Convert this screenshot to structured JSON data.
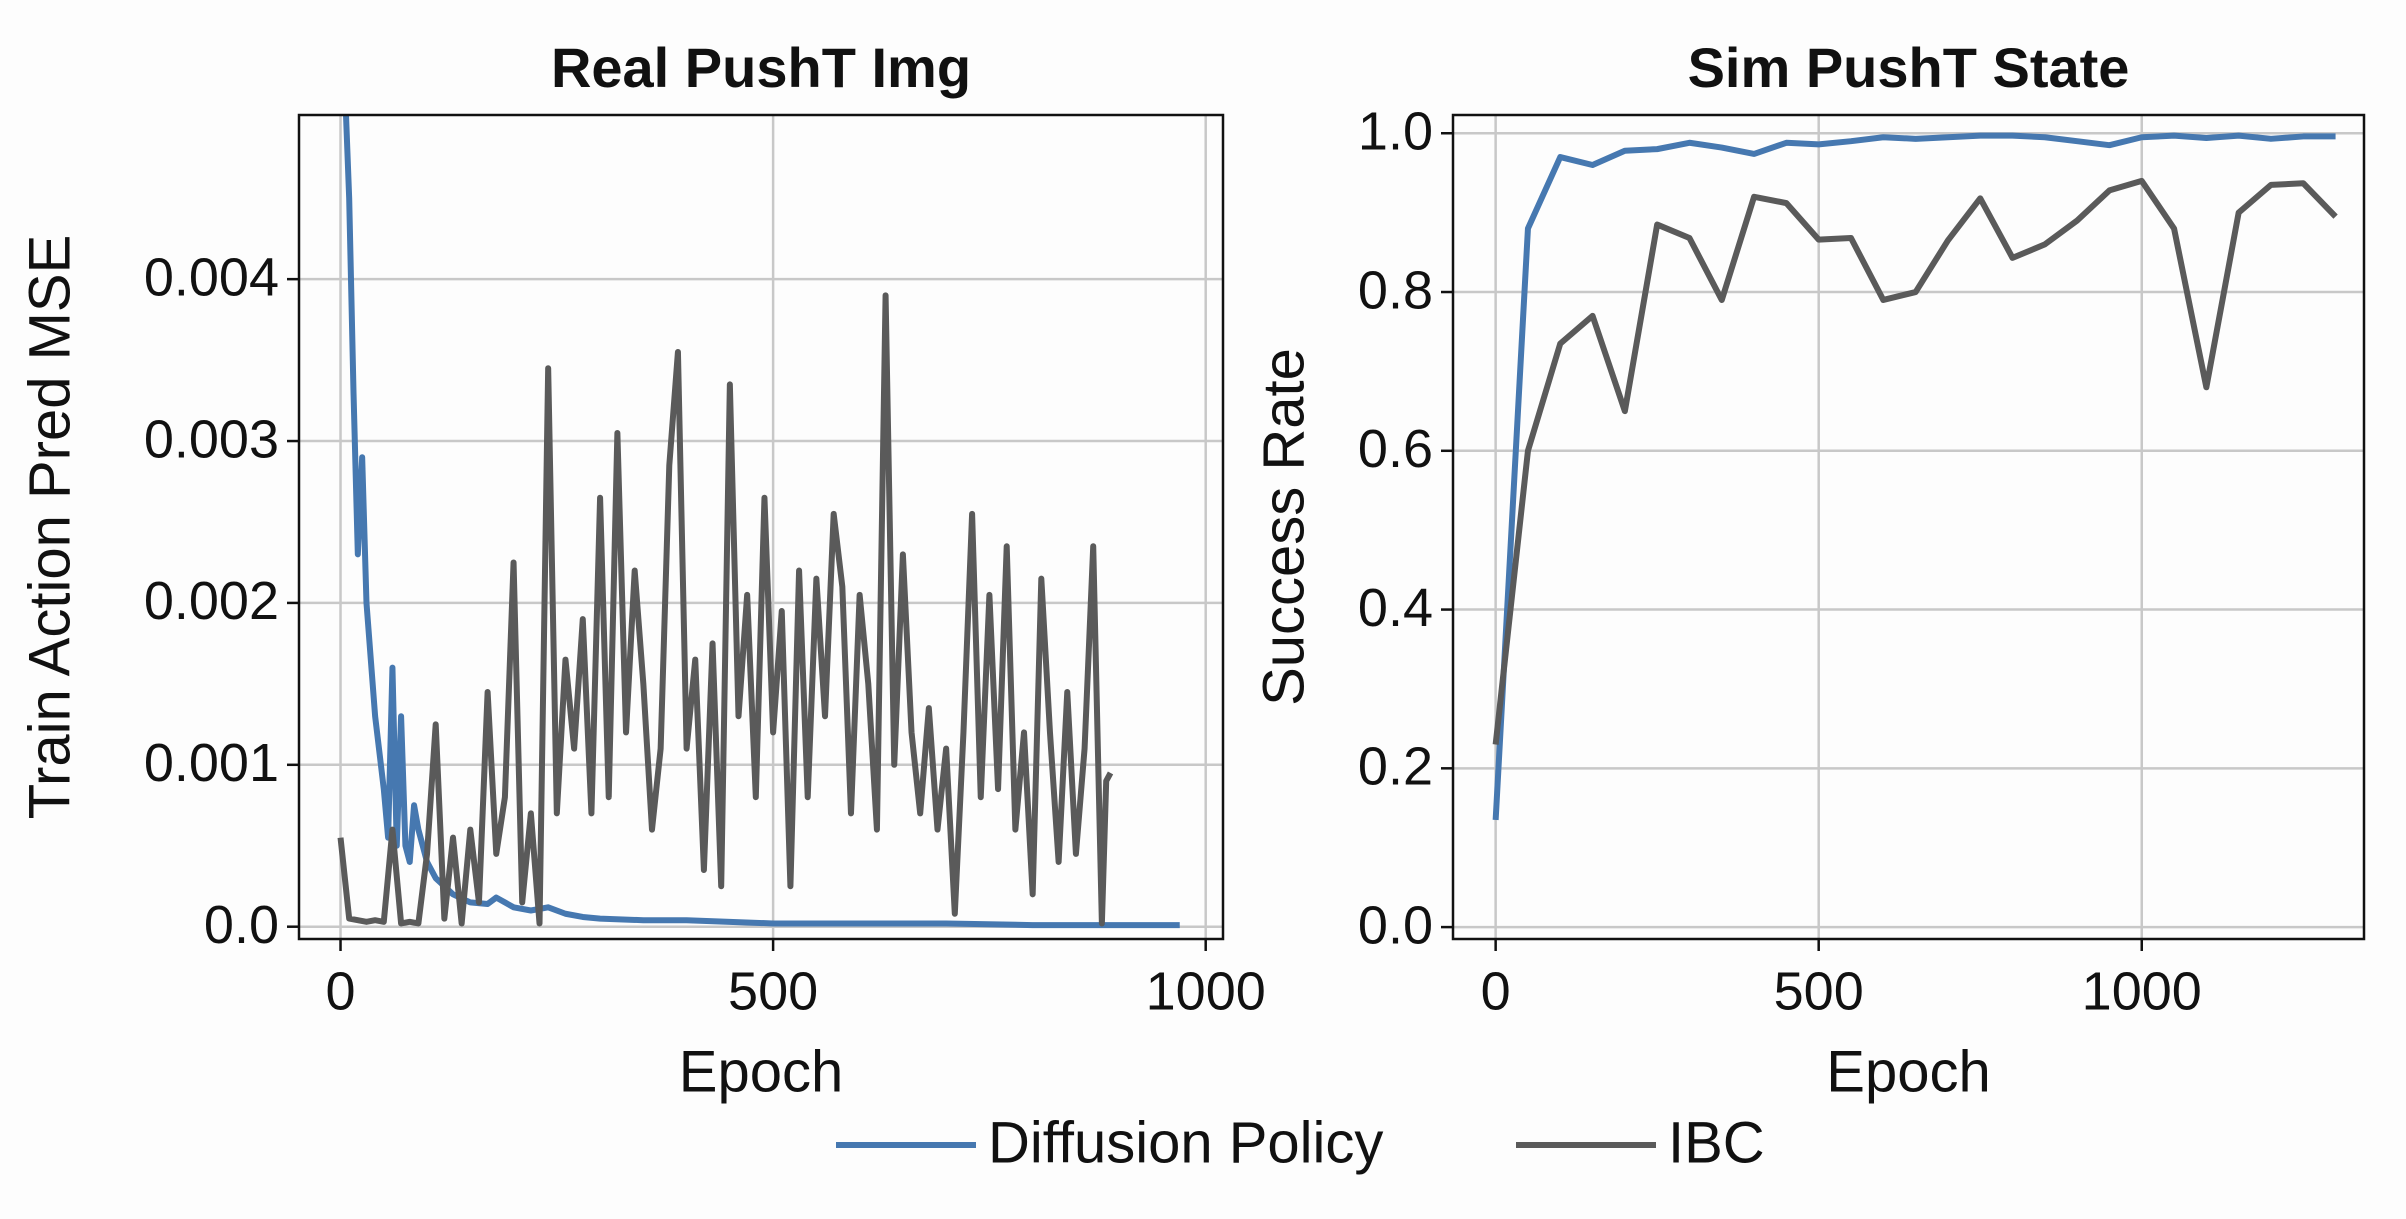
{
  "chart_data": [
    {
      "type": "line",
      "title": "Real PushT Img",
      "xlabel": "Epoch",
      "ylabel": "Train Action Pred MSE",
      "xlim": [
        -48,
        1020
      ],
      "ylim": [
        -7.6e-05,
        0.005014
      ],
      "xticks": [
        0,
        500,
        1000
      ],
      "yticks": [
        {
          "value": 0,
          "label": "0.0"
        },
        0.001,
        0.002,
        0.003,
        0.004
      ],
      "grid": true,
      "series": [
        {
          "name": "Diffusion Policy",
          "color": "#4678b0",
          "x": [
            5,
            10,
            15,
            20,
            25,
            30,
            40,
            50,
            55,
            60,
            65,
            70,
            75,
            80,
            85,
            90,
            100,
            110,
            120,
            130,
            150,
            170,
            180,
            190,
            200,
            220,
            240,
            260,
            280,
            300,
            350,
            400,
            450,
            500,
            600,
            700,
            800,
            900,
            970
          ],
          "values": [
            0.0052,
            0.0045,
            0.0033,
            0.0023,
            0.0029,
            0.002,
            0.0013,
            0.00085,
            0.00055,
            0.0016,
            0.0005,
            0.0013,
            0.0005,
            0.0004,
            0.00075,
            0.0006,
            0.0004,
            0.0003,
            0.00025,
            0.0002,
            0.00015,
            0.00014,
            0.00018,
            0.00015,
            0.00012,
            0.0001,
            0.00012,
            8e-05,
            6e-05,
            5e-05,
            4e-05,
            4e-05,
            3e-05,
            2e-05,
            2e-05,
            2e-05,
            1e-05,
            1e-05,
            1e-05
          ]
        },
        {
          "name": "IBC",
          "color": "#5a5a5a",
          "x": [
            0,
            10,
            20,
            30,
            40,
            50,
            60,
            70,
            80,
            90,
            100,
            110,
            120,
            130,
            140,
            150,
            160,
            170,
            180,
            190,
            200,
            210,
            220,
            230,
            240,
            250,
            260,
            270,
            280,
            290,
            300,
            310,
            320,
            330,
            340,
            350,
            360,
            370,
            380,
            390,
            400,
            410,
            420,
            430,
            440,
            450,
            460,
            470,
            480,
            490,
            500,
            510,
            520,
            530,
            540,
            550,
            560,
            570,
            580,
            590,
            600,
            610,
            620,
            630,
            640,
            650,
            660,
            670,
            680,
            690,
            700,
            710,
            720,
            730,
            740,
            750,
            760,
            770,
            780,
            790,
            800,
            810,
            820,
            830,
            840,
            850,
            860,
            870,
            880,
            885,
            890
          ],
          "values": [
            0.00055,
            5e-05,
            4e-05,
            3e-05,
            4e-05,
            3e-05,
            0.0006,
            2e-05,
            3e-05,
            2e-05,
            0.00045,
            0.00125,
            5e-05,
            0.00055,
            2e-05,
            0.0006,
            0.00015,
            0.00145,
            0.00045,
            0.0008,
            0.00225,
            0.00015,
            0.0007,
            2e-05,
            0.00345,
            0.0007,
            0.00165,
            0.0011,
            0.0019,
            0.0007,
            0.00265,
            0.0008,
            0.00305,
            0.0012,
            0.0022,
            0.0015,
            0.0006,
            0.0011,
            0.00285,
            0.00355,
            0.0011,
            0.00165,
            0.00035,
            0.00175,
            0.00025,
            0.00335,
            0.0013,
            0.00205,
            0.0008,
            0.00265,
            0.0012,
            0.00195,
            0.00025,
            0.0022,
            0.0008,
            0.00215,
            0.0013,
            0.00255,
            0.0021,
            0.0007,
            0.00205,
            0.0015,
            0.0006,
            0.0039,
            0.001,
            0.0023,
            0.0012,
            0.0007,
            0.00135,
            0.0006,
            0.0011,
            8e-05,
            0.0012,
            0.00255,
            0.0008,
            0.00205,
            0.00085,
            0.00235,
            0.0006,
            0.0012,
            0.0002,
            0.00215,
            0.0012,
            0.0004,
            0.00145,
            0.00045,
            0.0011,
            0.00235,
            2e-05,
            0.0009,
            0.00095
          ]
        }
      ]
    },
    {
      "type": "line",
      "title": "Sim PushT State",
      "xlabel": "Epoch",
      "ylabel": "Success Rate",
      "xlim": [
        -66,
        1344
      ],
      "ylim": [
        -0.015,
        1.023
      ],
      "xticks": [
        0,
        500,
        1000
      ],
      "yticks": [
        {
          "value": 0,
          "label": "0.0"
        },
        0.2,
        0.4,
        0.6,
        0.8,
        {
          "value": 1,
          "label": "1.0"
        }
      ],
      "grid": true,
      "series": [
        {
          "color": "#4678b0",
          "x": [
            0,
            50,
            100,
            150,
            200,
            250,
            300,
            350,
            400,
            450,
            500,
            550,
            600,
            650,
            700,
            750,
            800,
            850,
            900,
            950,
            1000,
            1050,
            1100,
            1150,
            1200,
            1250,
            1300
          ],
          "values": [
            0.135,
            0.88,
            0.97,
            0.96,
            0.978,
            0.98,
            0.988,
            0.982,
            0.974,
            0.988,
            0.986,
            0.99,
            0.995,
            0.993,
            0.995,
            0.997,
            0.997,
            0.995,
            0.99,
            0.985,
            0.995,
            0.997,
            0.994,
            0.997,
            0.993,
            0.996,
            0.996
          ]
        },
        {
          "color": "#5a5a5a",
          "x": [
            0,
            50,
            100,
            150,
            200,
            250,
            300,
            350,
            400,
            450,
            500,
            550,
            600,
            650,
            700,
            750,
            800,
            850,
            900,
            950,
            1000,
            1050,
            1100,
            1150,
            1200,
            1250,
            1300
          ],
          "values": [
            0.23,
            0.6,
            0.735,
            0.77,
            0.65,
            0.885,
            0.868,
            0.79,
            0.92,
            0.912,
            0.866,
            0.868,
            0.79,
            0.8,
            0.865,
            0.918,
            0.843,
            0.86,
            0.89,
            0.928,
            0.94,
            0.88,
            0.68,
            0.9,
            0.935,
            0.937,
            0.895
          ]
        }
      ]
    }
  ]
}
